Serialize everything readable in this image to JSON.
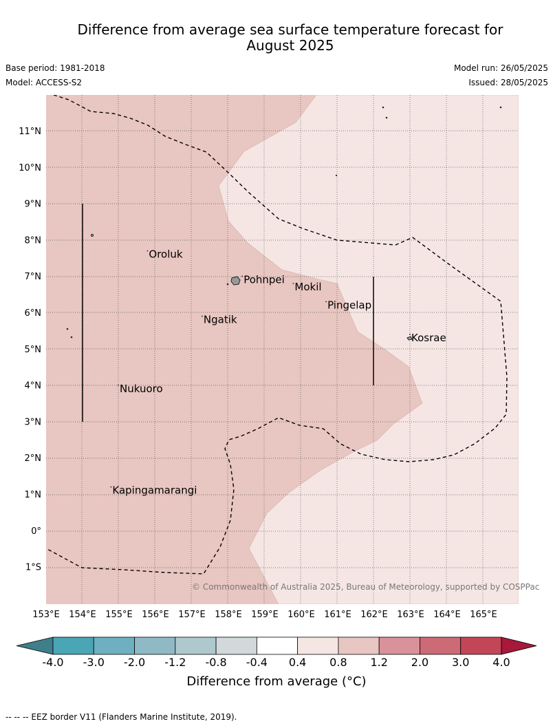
{
  "title_line1": "Difference from average sea surface temperature forecast for",
  "title_line2": "August 2025",
  "base_period": "Base period: 1981-2018",
  "model": "Model: ACCESS-S2",
  "model_run": "Model run: 26/05/2025",
  "issued": "Issued: 28/05/2025",
  "copyright": "© Commonwealth of Australia 2025, Bureau of Meteorology, supported by COSPPac",
  "lon_labels": [
    "153°E",
    "154°E",
    "155°E",
    "156°E",
    "157°E",
    "158°E",
    "159°E",
    "160°E",
    "161°E",
    "162°E",
    "163°E",
    "164°E",
    "165°E"
  ],
  "lat_labels": [
    "11°N",
    "10°N",
    "9°N",
    "8°N",
    "7°N",
    "6°N",
    "5°N",
    "4°N",
    "3°N",
    "2°N",
    "1°N",
    "0°",
    "1°S"
  ],
  "places": [
    {
      "name": "Oroluk",
      "lon": 155.8,
      "lat": 7.6
    },
    {
      "name": "Pohnpei",
      "lon": 158.4,
      "lat": 6.9
    },
    {
      "name": "Mokil",
      "lon": 159.8,
      "lat": 6.7
    },
    {
      "name": "Pingelap",
      "lon": 160.7,
      "lat": 6.2
    },
    {
      "name": "Ngatik",
      "lon": 157.3,
      "lat": 5.8
    },
    {
      "name": "Kosrae",
      "lon": 163.0,
      "lat": 5.3
    },
    {
      "name": "Nukuoro",
      "lon": 155.0,
      "lat": 3.9
    },
    {
      "name": "Kapingamarangi",
      "lon": 154.8,
      "lat": 1.1
    }
  ],
  "colors": {
    "band_0.8_1.2": "#e8c6c1",
    "band_0.4_0.8": "#f5e6e4",
    "colorbar": [
      "#3f7f8b",
      "#4aa5b5",
      "#6eb0c0",
      "#8fbac5",
      "#aec9cd",
      "#d1d9da",
      "#ffffff",
      "#f5e6e4",
      "#e8c6c1",
      "#d9919a",
      "#cc6a76",
      "#c34657",
      "#a8183a"
    ]
  },
  "colorbar_ticks": [
    "-4.0",
    "-3.0",
    "-2.0",
    "-1.2",
    "-0.8",
    "-0.4",
    "0.4",
    "0.8",
    "1.2",
    "2.0",
    "3.0",
    "4.0"
  ],
  "colorbar_title": "Difference from average (°C)",
  "footnote": "--  --  -- EEZ border V11 (Flanders Marine Institute, 2019)."
}
